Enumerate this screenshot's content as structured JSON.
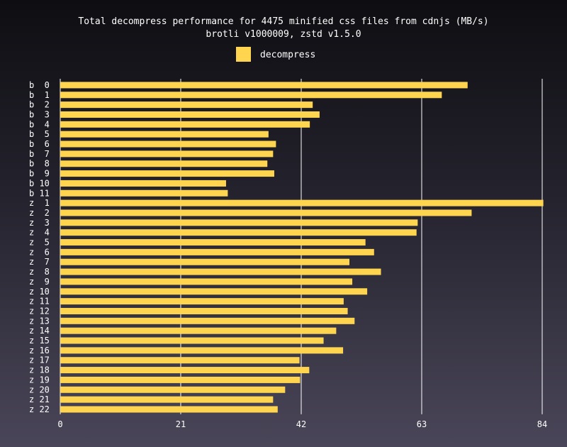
{
  "chart_data": {
    "type": "bar",
    "orientation": "horizontal",
    "title": "Total decompress performance for 4475 minified css files from cdnjs (MB/s)",
    "subtitle": "brotli v1000009, zstd v1.5.0",
    "xlim": [
      0,
      84
    ],
    "x_ticks": [
      0,
      21,
      42,
      63,
      84
    ],
    "grid": true,
    "legend_position": "top-center",
    "bar_color": "#ffd54f",
    "categories": [
      "b  0",
      "b  1",
      "b  2",
      "b  3",
      "b  4",
      "b  5",
      "b  6",
      "b  7",
      "b  8",
      "b  9",
      "b 10",
      "b 11",
      "z  1",
      "z  2",
      "z  3",
      "z  4",
      "z  5",
      "z  6",
      "z  7",
      "z  8",
      "z  9",
      "z 10",
      "z 11",
      "z 12",
      "z 13",
      "z 14",
      "z 15",
      "z 16",
      "z 17",
      "z 18",
      "z 19",
      "z 20",
      "z 21",
      "z 22"
    ],
    "series": [
      {
        "name": "decompress",
        "values": [
          71,
          66.5,
          44,
          45.2,
          43.5,
          36.3,
          37.6,
          37.1,
          36.1,
          37.3,
          28.9,
          29.2,
          84.2,
          71.7,
          62.3,
          62.1,
          53.2,
          54.7,
          50.4,
          55.9,
          50.9,
          53.5,
          49.4,
          50.1,
          51.3,
          48.1,
          45.9,
          49.3,
          41.7,
          43.4,
          41.8,
          39.2,
          37.1,
          37.9
        ]
      }
    ]
  }
}
